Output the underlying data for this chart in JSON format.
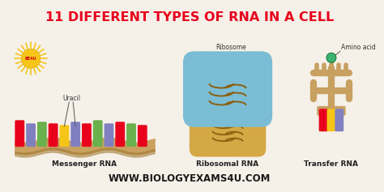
{
  "title": "11 DIFFERENT TYPES OF RNA IN A CELL",
  "title_color": "#e8001c",
  "title_fontsize": 11.5,
  "bg_color": "#f5f0e8",
  "footer": "WWW.BIOLOGYEXAMS4U.COM",
  "footer_color": "#1a1a1a",
  "footer_fontsize": 8.5,
  "label_mrna": "Messenger RNA",
  "label_rrna": "Ribosomal RNA",
  "label_trna": "Transfer RNA",
  "label_uracil": "Uracil",
  "label_ribosome": "Ribosome",
  "label_amino": "Amino acid",
  "mrna_base_colors": [
    "#e8001c",
    "#8080c0",
    "#6ab04c",
    "#e8001c",
    "#f5c518",
    "#8080c0",
    "#e8001c",
    "#6ab04c",
    "#8080c0",
    "#e8001c",
    "#6ab04c",
    "#e8001c"
  ],
  "uracil_colors": [
    "#f5c518",
    "#8080c0",
    "#f5c518"
  ],
  "trna_base_colors": [
    "#e8001c",
    "#f5c518",
    "#8080c0"
  ],
  "sun_color": "#f5c518",
  "ribo_top_color": "#7bbdd4",
  "ribo_bot_color": "#d4a845",
  "ribo_line_color": "#8b6010",
  "trna_body_color": "#c8a060",
  "amino_color": "#3cb371"
}
